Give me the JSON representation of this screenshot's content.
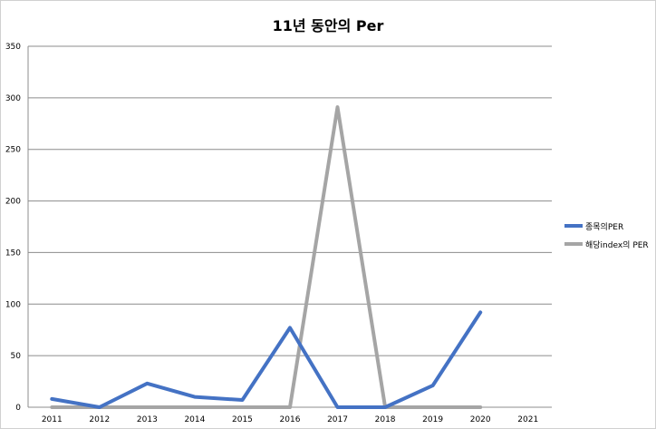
{
  "chart_data": {
    "type": "line",
    "title": "11년 동안의 Per",
    "xlabel": "",
    "ylabel": "",
    "categories": [
      "2011",
      "2012",
      "2013",
      "2014",
      "2015",
      "2016",
      "2017",
      "2018",
      "2019",
      "2020",
      "2021"
    ],
    "ylim": [
      0,
      350
    ],
    "yticks": [
      0,
      50,
      100,
      150,
      200,
      250,
      300,
      350
    ],
    "grid": true,
    "legend_position": "right",
    "series": [
      {
        "name": "종목의PER",
        "color": "#4472C4",
        "values": [
          8,
          0,
          23,
          10,
          7,
          77,
          0,
          0,
          21,
          92,
          null
        ]
      },
      {
        "name": "해당index의 PER",
        "color": "#A5A5A5",
        "values": [
          0,
          0,
          0,
          0,
          0,
          0,
          291,
          0,
          0,
          0,
          null
        ]
      }
    ]
  }
}
